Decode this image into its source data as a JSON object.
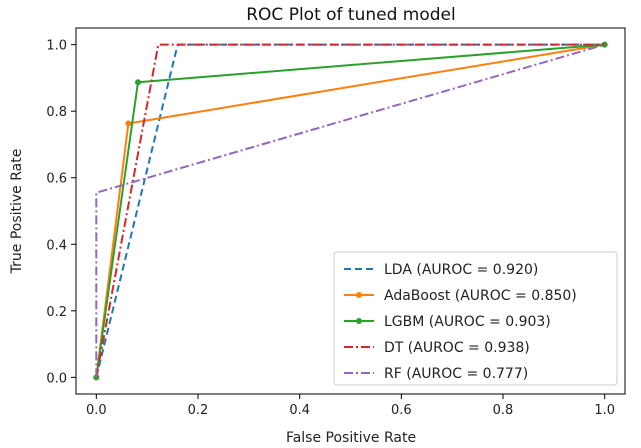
{
  "chart_data": {
    "type": "line",
    "title": "ROC Plot of tuned model",
    "xlabel": "False Positive Rate",
    "ylabel": "True Positive Rate",
    "xlim": [
      -0.04,
      1.04
    ],
    "ylim": [
      -0.05,
      1.05
    ],
    "xticks": [
      "0.0",
      "0.2",
      "0.4",
      "0.6",
      "0.8",
      "1.0"
    ],
    "yticks": [
      "0.0",
      "0.2",
      "0.4",
      "0.6",
      "0.8",
      "1.0"
    ],
    "grid": false,
    "legend_position": "lower-right",
    "series": [
      {
        "name": "LDA (AUROC = 0.920)",
        "color": "#1f77b4",
        "style": "dashed",
        "marker": false,
        "x": [
          0.0,
          0.16,
          1.0
        ],
        "y": [
          0.0,
          1.0,
          1.0
        ]
      },
      {
        "name": "AdaBoost (AUROC = 0.850)",
        "color": "#ff7f0e",
        "style": "solid",
        "marker": true,
        "x": [
          0.0,
          0.063,
          1.0
        ],
        "y": [
          0.0,
          0.763,
          1.0
        ]
      },
      {
        "name": "LGBM (AUROC = 0.903)",
        "color": "#2ca02c",
        "style": "solid",
        "marker": true,
        "x": [
          0.0,
          0.082,
          1.0
        ],
        "y": [
          0.0,
          0.887,
          1.0
        ]
      },
      {
        "name": "DT (AUROC = 0.938)",
        "color": "#d62728",
        "style": "dashdot",
        "marker": false,
        "x": [
          0.0,
          0.122,
          1.0
        ],
        "y": [
          0.0,
          1.0,
          1.0
        ]
      },
      {
        "name": "RF (AUROC = 0.777)",
        "color": "#9467bd",
        "style": "dashdot",
        "marker": false,
        "x": [
          0.0,
          0.0,
          1.0
        ],
        "y": [
          0.0,
          0.555,
          1.0
        ]
      }
    ]
  }
}
